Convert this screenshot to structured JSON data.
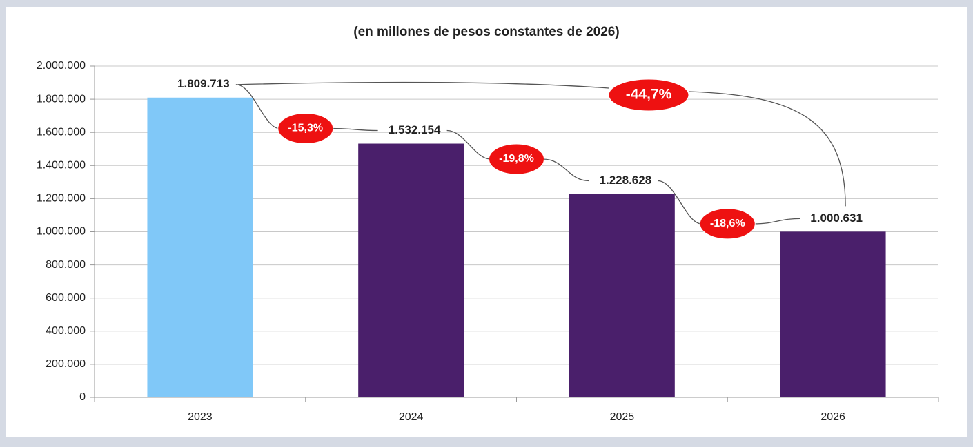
{
  "chart_data": {
    "type": "bar",
    "title": "(en millones de pesos constantes de 2026)",
    "categories": [
      "2023",
      "2024",
      "2025",
      "2026"
    ],
    "values": [
      1809713,
      1532154,
      1228628,
      1000631
    ],
    "value_labels": [
      "1.809.713",
      "1.532.154",
      "1.228.628",
      "1.000.631"
    ],
    "colors": [
      "#80c8f8",
      "#4a1f6b",
      "#4a1f6b",
      "#4a1f6b"
    ],
    "ylim": [
      0,
      2000000
    ],
    "yticks": [
      0,
      {
        "value": 200000,
        "label": "200.000"
      },
      {
        "value": 400000,
        "label": "400.000"
      },
      {
        "value": 600000,
        "label": "600.000"
      },
      {
        "value": 800000,
        "label": "800.000"
      },
      {
        "value": 1000000,
        "label": "1.000.000"
      },
      {
        "value": 1200000,
        "label": "1.200.000"
      },
      {
        "value": 1400000,
        "label": "1.400.000"
      },
      {
        "value": 1600000,
        "label": "1.600.000"
      },
      {
        "value": 1800000,
        "label": "1.800.000"
      },
      {
        "value": 2000000,
        "label": "2.000.000"
      }
    ],
    "grid": true,
    "annotations": [
      "-15,3%",
      "-19,8%",
      "-18,6%",
      "-44,7%"
    ]
  }
}
